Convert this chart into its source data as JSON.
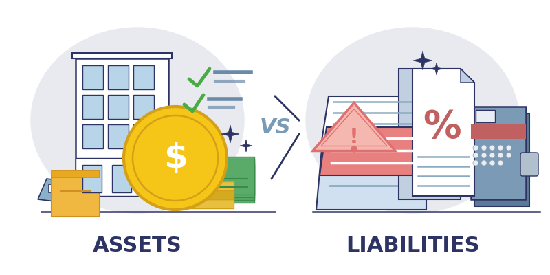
{
  "bg_color": "#ffffff",
  "circle_color": "#e8eaf0",
  "outline_color": "#2d3464",
  "assets_label": "ASSETS",
  "liabilities_label": "LIABILITIES",
  "vs_label": "VS",
  "vs_color": "#7a9bb5",
  "label_color": "#2d3464",
  "building_fill": "#ffffff",
  "window_fill": "#b8d4e8",
  "coin_gold": "#f5c518",
  "coin_rim": "#d4a017",
  "money_green": "#5aaa6a",
  "money_dark": "#3a8a4a",
  "box_orange": "#f0b840",
  "box_dark": "#d09020",
  "box_blue_fill": "#8ab0c8",
  "check_green": "#4aaa44",
  "check_line": "#6a8aaa",
  "warn_fill": "#f5b8b0",
  "warn_border": "#e07070",
  "warn_exclaim": "#e07070",
  "doc_white": "#ffffff",
  "doc_light_blue": "#d0e0f0",
  "doc_red": "#e88080",
  "doc_lines_blue": "#8aaac0",
  "pct_doc_fill": "#c0d0e0",
  "pct_color": "#c06060",
  "credit_main": "#7a9ab5",
  "credit_shadow": "#5a7a95",
  "credit_red_stripe": "#c06060",
  "credit_white_box": "#e8eef4",
  "sparkle_color": "#2d3464",
  "slash_color": "#2d3464",
  "ground_color": "#2d3464"
}
